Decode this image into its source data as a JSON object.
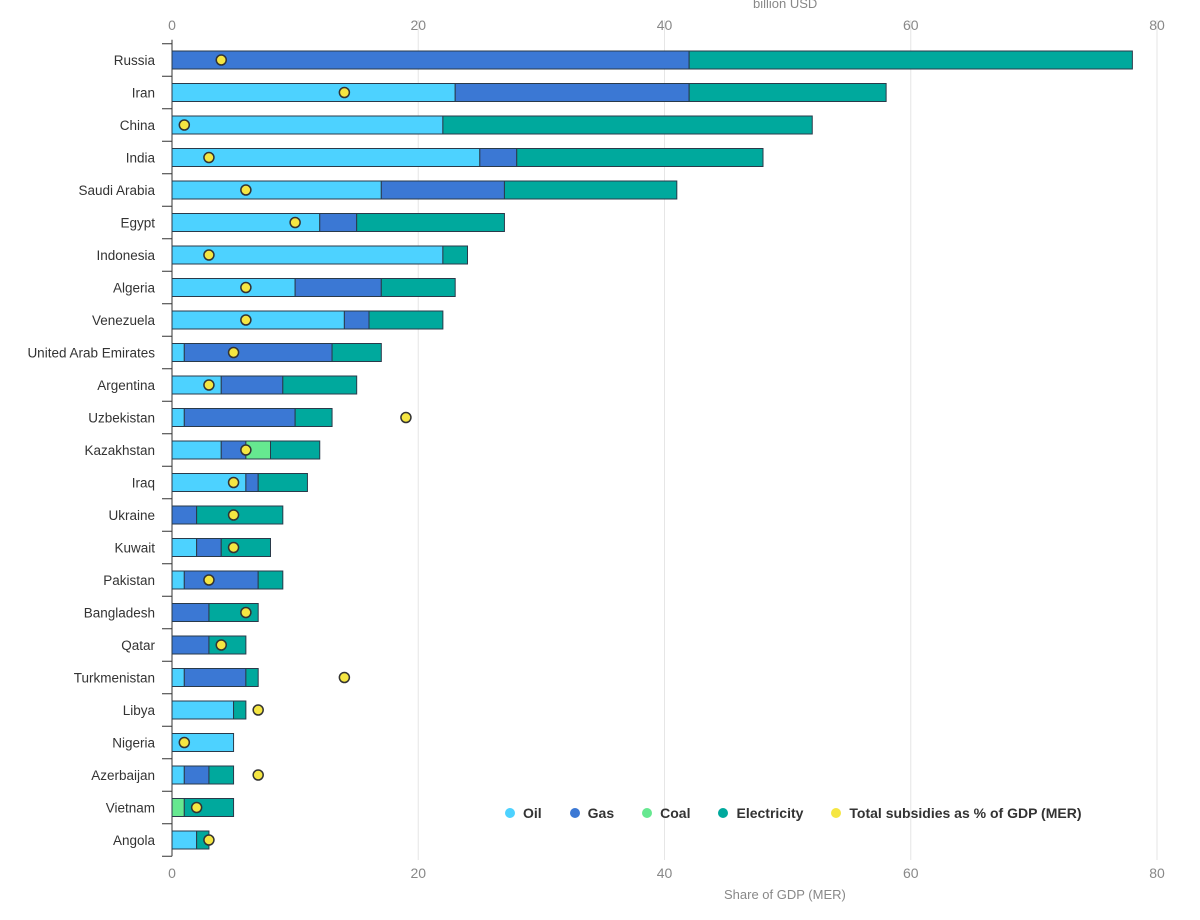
{
  "chart_data": {
    "type": "bar",
    "orientation": "horizontal",
    "stacked": true,
    "top_axis_label": "billion USD",
    "bottom_axis_label": "Share of GDP (MER)",
    "xlim": [
      0,
      80
    ],
    "ticks": [
      0,
      20,
      40,
      60,
      80
    ],
    "grid": true,
    "legend_position": "bottom-right",
    "categories": [
      "Russia",
      "Iran",
      "China",
      "India",
      "Saudi Arabia",
      "Egypt",
      "Indonesia",
      "Algeria",
      "Venezuela",
      "United Arab Emirates",
      "Argentina",
      "Uzbekistan",
      "Kazakhstan",
      "Iraq",
      "Ukraine",
      "Kuwait",
      "Pakistan",
      "Bangladesh",
      "Qatar",
      "Turkmenistan",
      "Libya",
      "Nigeria",
      "Azerbaijan",
      "Vietnam",
      "Angola"
    ],
    "series": [
      {
        "name": "Oil",
        "color": "#4dd2ff",
        "values": [
          0,
          23,
          22,
          25,
          17,
          12,
          22,
          10,
          14,
          1,
          4,
          1,
          4,
          6,
          0,
          2,
          1,
          0,
          0,
          1,
          5,
          5,
          1,
          0,
          2
        ]
      },
      {
        "name": "Gas",
        "color": "#3b78d4",
        "values": [
          42,
          19,
          0,
          3,
          10,
          3,
          0,
          7,
          2,
          12,
          5,
          9,
          2,
          1,
          2,
          2,
          6,
          3,
          3,
          5,
          0,
          0,
          2,
          0,
          0
        ]
      },
      {
        "name": "Coal",
        "color": "#66e890",
        "values": [
          0,
          0,
          0,
          0,
          0,
          0,
          0,
          0,
          0,
          0,
          0,
          0,
          2,
          0,
          0,
          0,
          0,
          0,
          0,
          0,
          0,
          0,
          0,
          1,
          0
        ]
      },
      {
        "name": "Electricity",
        "color": "#00a99d",
        "values": [
          36,
          16,
          30,
          20,
          14,
          12,
          2,
          6,
          6,
          4,
          6,
          3,
          4,
          4,
          7,
          4,
          2,
          4,
          3,
          1,
          1,
          0,
          2,
          4,
          1
        ]
      }
    ],
    "marker_series": {
      "name": "Total subsidies as % of GDP (MER)",
      "color": "#f5e642",
      "values": [
        4,
        14,
        1,
        3,
        6,
        10,
        3,
        6,
        6,
        5,
        3,
        19,
        6,
        5,
        5,
        5,
        3,
        6,
        4,
        14,
        7,
        1,
        7,
        2,
        3
      ]
    }
  }
}
